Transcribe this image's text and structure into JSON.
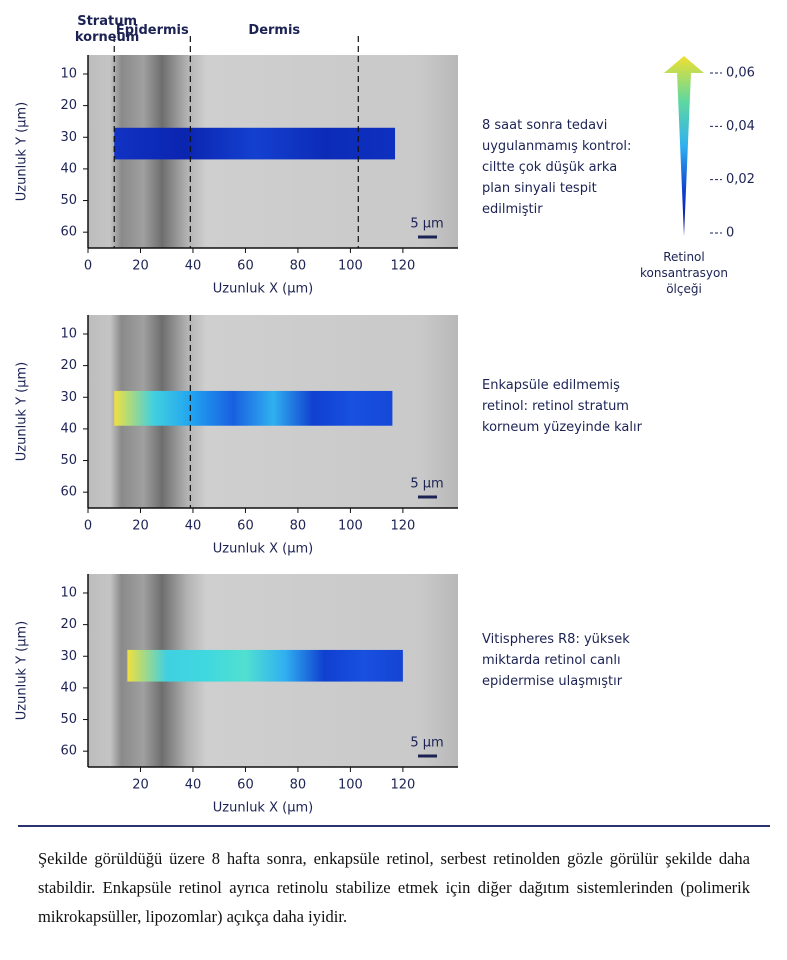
{
  "chart_data": [
    {
      "type": "image",
      "xlabel": "Uzunluk X (µm)",
      "ylabel": "Uzunluk Y (µm)",
      "xlim": [
        0,
        141
      ],
      "ylim": [
        65,
        4
      ],
      "xticks": [
        0,
        20,
        40,
        60,
        80,
        100,
        120
      ],
      "yticks": [
        10,
        20,
        30,
        40,
        50,
        60
      ],
      "boundaries": [
        10,
        39,
        103
      ],
      "regions": [
        "Stratum korneum",
        "Epidermis",
        "Dermis"
      ],
      "strip": {
        "x": [
          10,
          117
        ],
        "y": [
          27,
          37
        ],
        "colors": [
          "#1132c4",
          "#0a25b0",
          "#1440d0",
          "#0c2cb8",
          "#0e30c0"
        ]
      },
      "scale_bar": "5 µm",
      "description": "8 saat sonra tedavi uygulanmamış kontrol: ciltte çok düşük arka plan sinyali tespit edilmiştir"
    },
    {
      "type": "image",
      "xlabel": "Uzunluk X (µm)",
      "ylabel": "Uzunluk Y (µm)",
      "xlim": [
        0,
        141
      ],
      "ylim": [
        65,
        4
      ],
      "xticks": [
        0,
        20,
        40,
        60,
        80,
        100,
        120
      ],
      "yticks": [
        10,
        20,
        30,
        40,
        50,
        60
      ],
      "boundaries": [
        39
      ],
      "strip": {
        "x": [
          10,
          116
        ],
        "y": [
          28,
          39
        ],
        "colors": [
          "#f0e040",
          "#40d0e0",
          "#20a0f0",
          "#1860e0",
          "#30b0f0",
          "#1040d0",
          "#1850e0",
          "#1448d8"
        ]
      },
      "scale_bar": "5 µm",
      "description": "Enkapsüle edilmemiş retinol: retinol stratum korneum yüzeyinde kalır"
    },
    {
      "type": "image",
      "xlabel": "Uzunluk X (µm)",
      "ylabel": "Uzunluk Y (µm)",
      "xlim": [
        0,
        141
      ],
      "ylim": [
        65,
        4
      ],
      "xticks": [
        20,
        40,
        60,
        80,
        100,
        120
      ],
      "yticks": [
        10,
        20,
        30,
        40,
        50,
        60
      ],
      "strip": {
        "x": [
          15,
          120
        ],
        "y": [
          28,
          38
        ],
        "colors": [
          "#f0e040",
          "#40d0e0",
          "#40d8e0",
          "#50e0d0",
          "#30b0f0",
          "#1040d0",
          "#1850e0",
          "#1444d4"
        ]
      },
      "scale_bar": "5 µm",
      "description": "Vitispheres R8: yüksek miktarda retinol canlı epidermise ulaşmıştır"
    }
  ],
  "colorbar": {
    "title": "Retinol konsantrasyon ölçeği",
    "lim": [
      0,
      0.06
    ],
    "ticks": [
      0,
      {
        "value": 0.02,
        "label": "0,02"
      },
      {
        "value": 0.04,
        "label": "0,04"
      },
      {
        "value": 0.06,
        "label": "0,06"
      }
    ],
    "colors": [
      "#0a0a8a",
      "#1040d0",
      "#30b0f0",
      "#60d8a0",
      "#f0e030"
    ]
  },
  "caption": "Şekilde görüldüğü üzere 8 hafta sonra, enkapsüle retinol, serbest retinolden gözle görülür şekilde daha stabildir. Enkapsüle retinol ayrıca retinolu stabilize etmek için diğer dağıtım sistemlerinden (polimerik mikrokapsüller, lipozomlar) açıkça daha iyidir."
}
